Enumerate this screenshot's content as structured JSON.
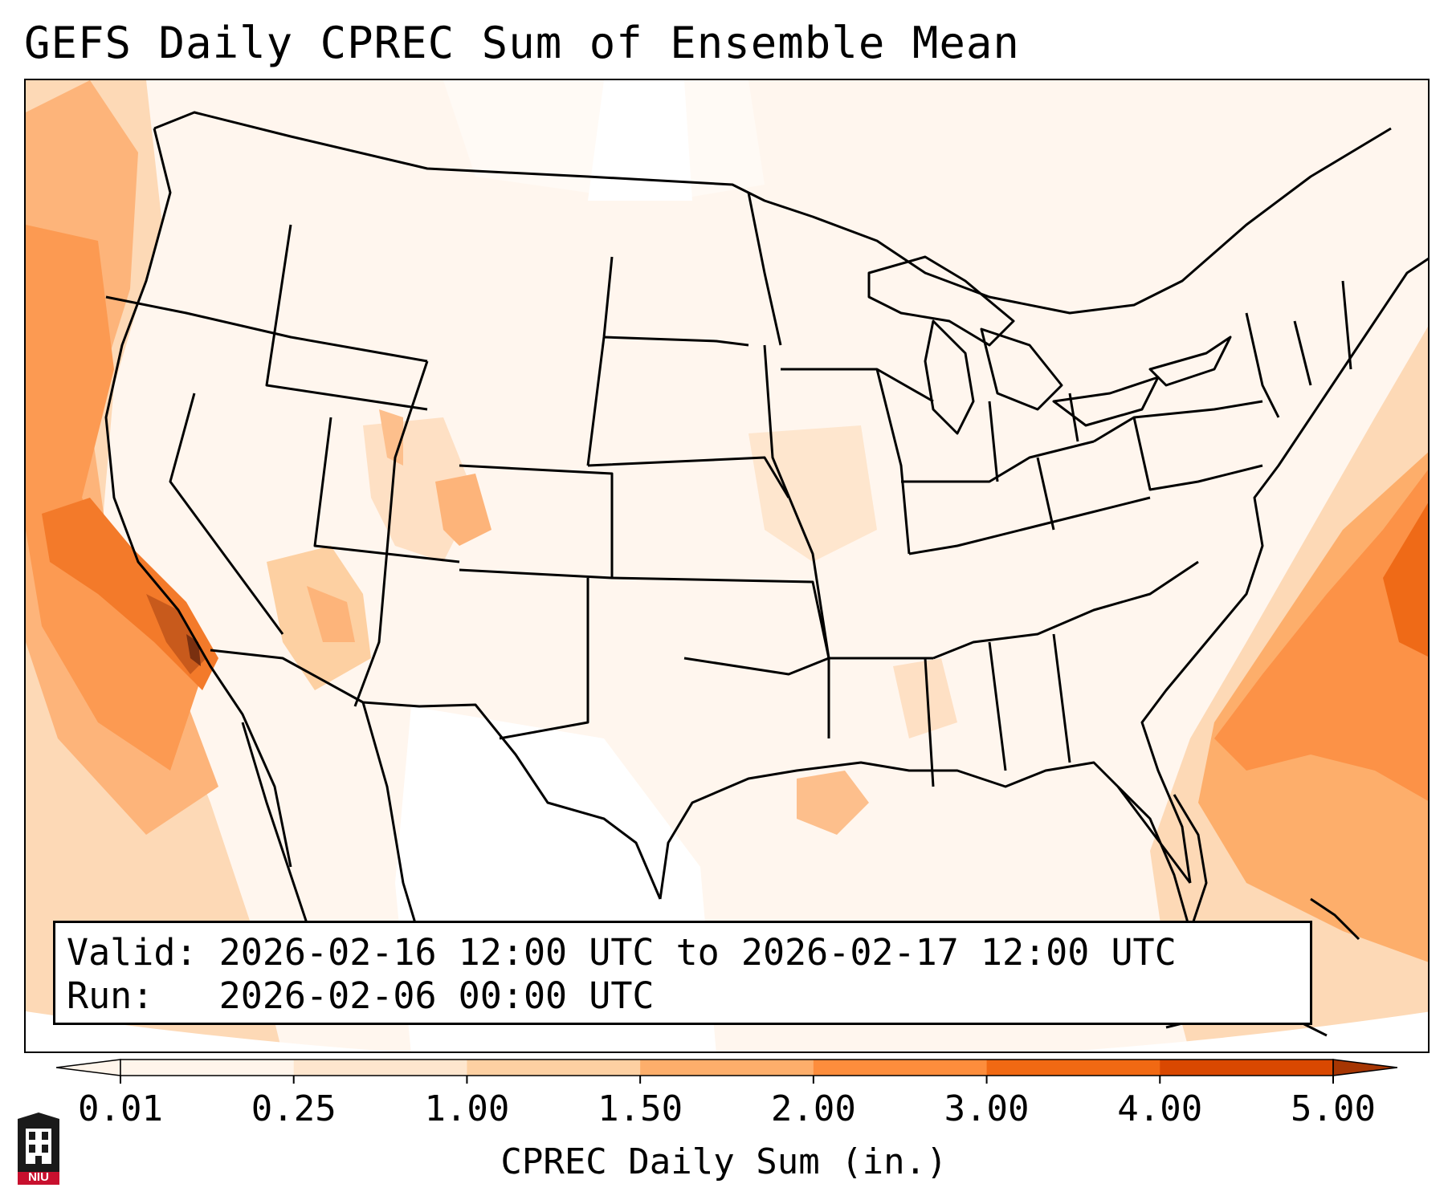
{
  "title": "GEFS Daily CPREC Sum of Ensemble Mean",
  "info": {
    "valid_label": "Valid:",
    "valid_value": "2026-02-16 12:00 UTC to 2026-02-17 12:00 UTC",
    "run_label": "Run:",
    "run_value": "2026-02-06 00:00 UTC"
  },
  "colorbar": {
    "label": "CPREC Daily Sum (in.)",
    "ticks": [
      "0.01",
      "0.25",
      "1.00",
      "1.50",
      "2.00",
      "3.00",
      "4.00",
      "5.00"
    ],
    "colors": [
      "#fff5eb",
      "#fee6ce",
      "#fdd0a2",
      "#fdae6b",
      "#fd8d3c",
      "#f16913",
      "#d94801",
      "#a63603"
    ],
    "extend": "both"
  },
  "map": {
    "projection": "lambert-conformal",
    "region": "CONUS"
  },
  "logo": {
    "icon": "niu-tower-icon",
    "text": "NIU"
  }
}
